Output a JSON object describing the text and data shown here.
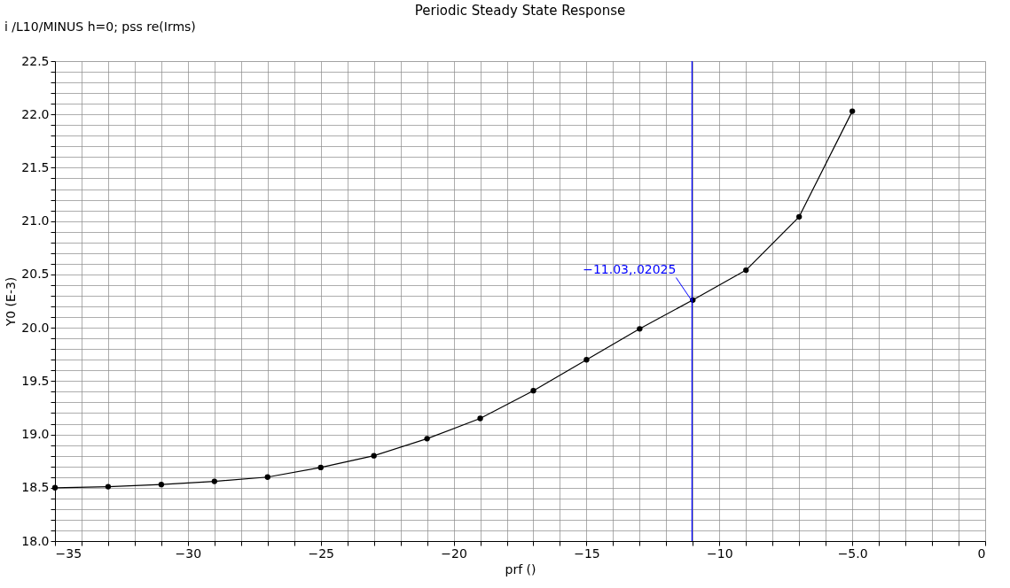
{
  "chart_data": {
    "type": "line",
    "title": "Periodic Steady State Response",
    "xlabel": "prf ()",
    "ylabel": "Y0 (E-3)",
    "x": [
      -35,
      -33,
      -31,
      -29,
      -27,
      -25,
      -23,
      -21,
      -19,
      -17,
      -15,
      -13,
      -11,
      -9,
      -7,
      -5
    ],
    "series": [
      {
        "name": "i /L10/MINUS h=0; pss re(Irms)",
        "color": "#000000",
        "values": [
          18.5,
          18.51,
          18.53,
          18.56,
          18.6,
          18.69,
          18.8,
          18.96,
          19.15,
          19.41,
          19.7,
          19.99,
          20.26,
          20.54,
          21.04,
          22.03
        ]
      }
    ],
    "xlim": [
      -35,
      0
    ],
    "xticks": [
      {
        "value": -35,
        "label": "−35"
      },
      {
        "value": -30,
        "label": "−30"
      },
      {
        "value": -25,
        "label": "−25"
      },
      {
        "value": -20,
        "label": "−20"
      },
      {
        "value": -15,
        "label": "−15"
      },
      {
        "value": -10,
        "label": "−10"
      },
      {
        "value": -5,
        "label": "−5.0"
      },
      0
    ],
    "ylim": [
      18.0,
      22.5
    ],
    "yticks": [
      {
        "value": 18.0,
        "label": "18.0"
      },
      18.5,
      {
        "value": 19.0,
        "label": "19.0"
      },
      19.5,
      {
        "value": 20.0,
        "label": "20.0"
      },
      20.5,
      {
        "value": 21.0,
        "label": "21.0"
      },
      21.5,
      {
        "value": 22.0,
        "label": "22.0"
      },
      22.5
    ],
    "ref_lines": [
      {
        "axis": "x",
        "value": -11.03,
        "color": "#0000ff"
      }
    ],
    "annotations": [
      {
        "text": "−11.03,.02025",
        "x": -11.03,
        "y": 20.25
      }
    ],
    "grid": true,
    "legend": "top left",
    "marker": "circle",
    "line_style": "solid"
  }
}
